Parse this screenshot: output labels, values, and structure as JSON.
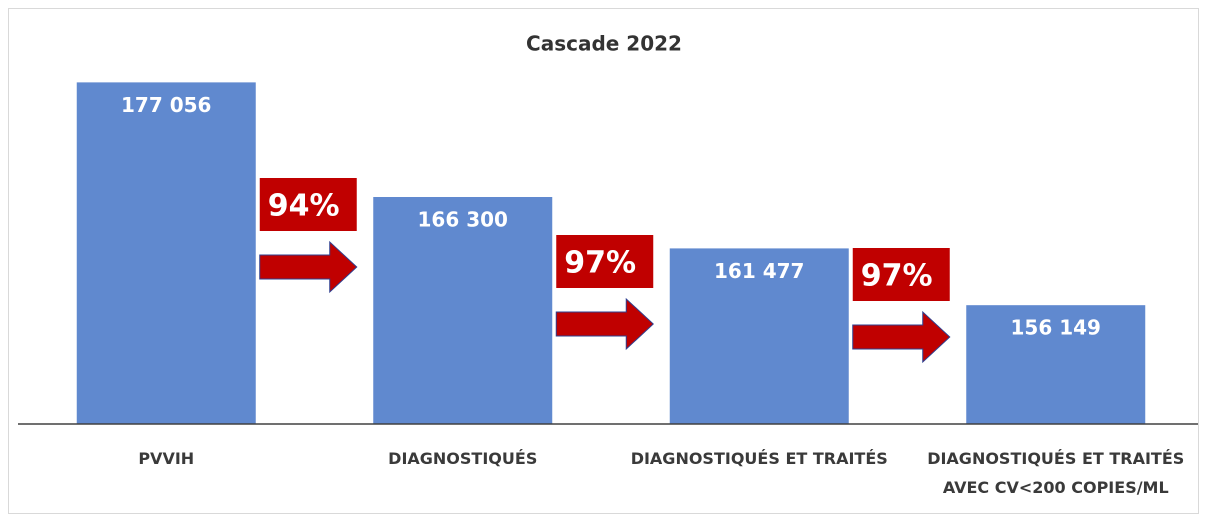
{
  "chart_data": {
    "type": "bar",
    "title": "Cascade 2022",
    "categories": [
      "PVVIH",
      "DIAGNOSTIQUÉS",
      "DIAGNOSTIQUÉS ET TRAITÉS",
      "DIAGNOSTIQUÉS ET TRAITÉS\nAVEC CV<200 COPIES/ML"
    ],
    "values": [
      177056,
      166300,
      161477,
      156149
    ],
    "value_labels": [
      "177 056",
      "166 300",
      "161 477",
      "156 149"
    ],
    "color": "#6089cf",
    "ylim": [
      145000,
      180000
    ],
    "annotations": [
      "94%",
      "97%",
      "97%"
    ],
    "annotation_color": "#c00000"
  }
}
